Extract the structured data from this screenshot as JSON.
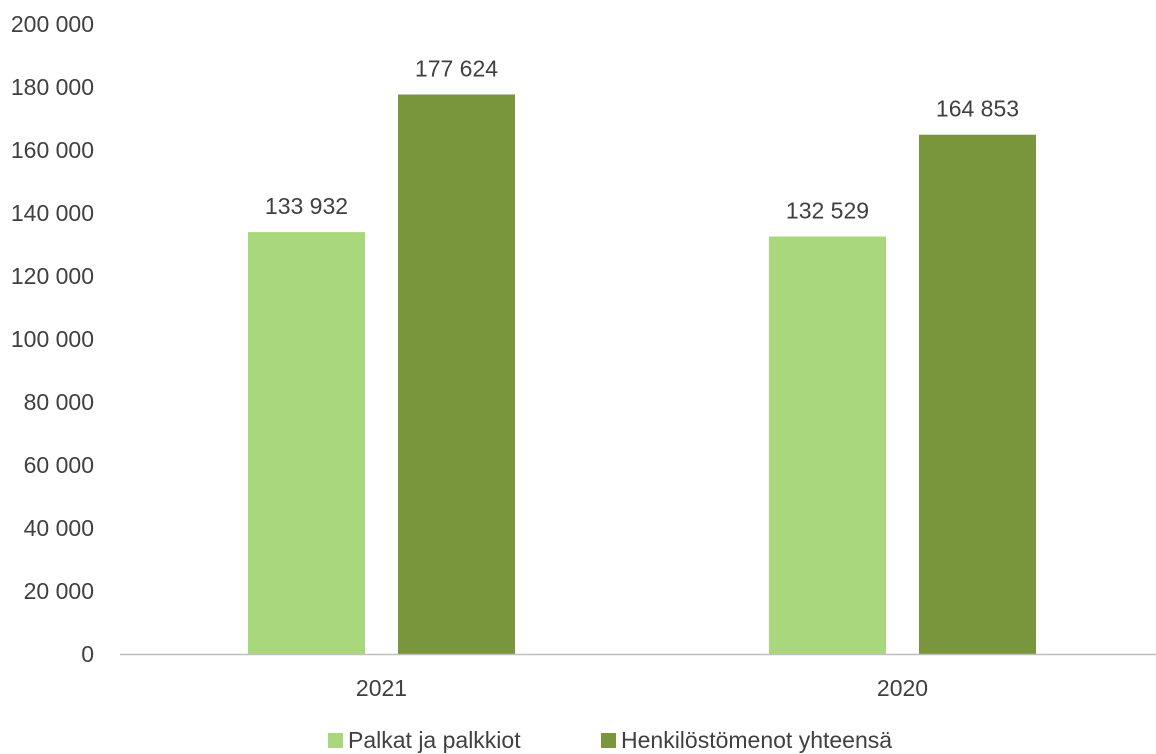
{
  "chart_data": {
    "type": "bar",
    "categories": [
      "2021",
      "2020"
    ],
    "series": [
      {
        "name": "Palkat ja palkkiot",
        "values": [
          133932,
          132529
        ],
        "labels": [
          "133 932",
          "132 529"
        ],
        "color": "#a9d87c"
      },
      {
        "name": "Henkilöstömenot yhteensä",
        "values": [
          177624,
          164853
        ],
        "labels": [
          "177 624",
          "164 853"
        ],
        "color": "#7a963c"
      }
    ],
    "ylim": [
      0,
      200000
    ],
    "yticks": [
      0,
      20000,
      40000,
      60000,
      80000,
      100000,
      120000,
      140000,
      160000,
      180000,
      200000
    ],
    "ytick_labels": [
      "0",
      "20 000",
      "40 000",
      "60 000",
      "80 000",
      "100 000",
      "120 000",
      "140 000",
      "160 000",
      "180 000",
      "200 000"
    ],
    "grid": false,
    "legend_position": "bottom",
    "axis_color": "#bfbfbf"
  }
}
